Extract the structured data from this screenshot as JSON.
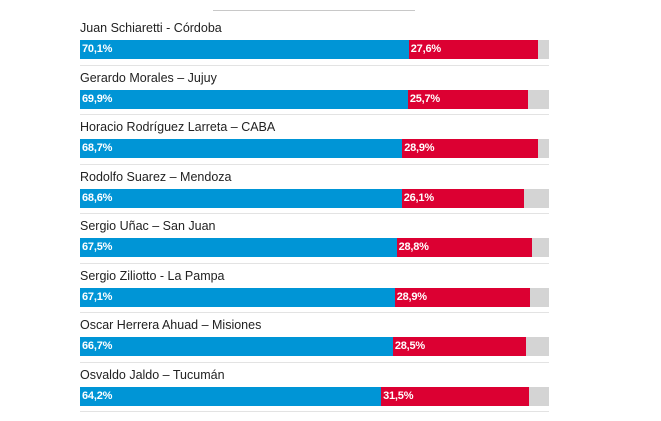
{
  "colors": {
    "primary": "#0095d6",
    "secondary": "#dc0032",
    "remainder": "#d4d4d4"
  },
  "chart_data": {
    "type": "bar",
    "orientation": "horizontal-stacked",
    "xlim": [
      0,
      100
    ],
    "categories": [
      "Juan Schiaretti - Córdoba",
      "Gerardo Morales – Jujuy",
      "Horacio Rodríguez Larreta – CABA",
      "Rodolfo Suarez – Mendoza",
      "Sergio Uñac – San Juan",
      "Sergio Ziliotto - La Pampa",
      "Oscar Herrera Ahuad – Misiones",
      "Osvaldo Jaldo – Tucumán"
    ],
    "series": [
      {
        "color": "#0095d6",
        "values": [
          70.1,
          69.9,
          68.7,
          68.6,
          67.5,
          67.1,
          66.7,
          64.2
        ],
        "labels": [
          "70,1%",
          "69,9%",
          "68,7%",
          "68,6%",
          "67,5%",
          "67,1%",
          "66,7%",
          "64,2%"
        ]
      },
      {
        "color": "#dc0032",
        "values": [
          27.6,
          25.7,
          28.9,
          26.1,
          28.8,
          28.9,
          28.5,
          31.5
        ],
        "labels": [
          "27,6%",
          "25,7%",
          "28,9%",
          "26,1%",
          "28,8%",
          "28,9%",
          "28,5%",
          "31,5%"
        ]
      }
    ]
  }
}
